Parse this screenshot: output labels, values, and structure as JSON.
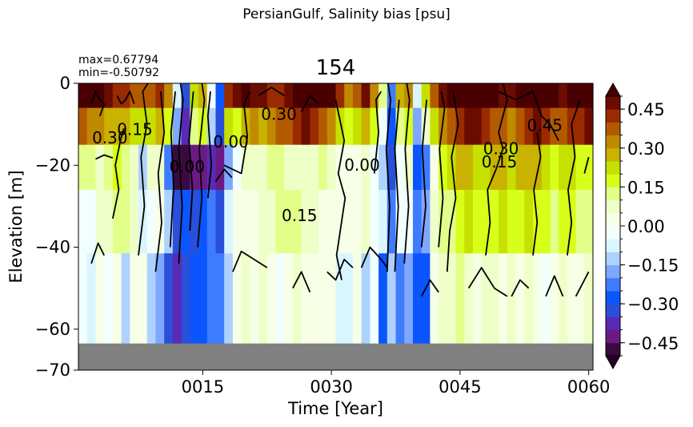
{
  "suptitle": "PersianGulf, Salinity bias [psu]",
  "panel": {
    "title": "154",
    "max_label": "max=0.67794",
    "min_label": "min=-0.50792"
  },
  "chart_data": {
    "type": "heatmap",
    "title": "154",
    "xlabel": "Time [Year]",
    "ylabel": "Elevation [m]",
    "xlim": [
      1,
      60
    ],
    "ylim": [
      -70,
      0
    ],
    "xticks": [
      {
        "v": 15,
        "label": "0015"
      },
      {
        "v": 30,
        "label": "0030"
      },
      {
        "v": 45,
        "label": "0045"
      },
      {
        "v": 60,
        "label": "0060"
      }
    ],
    "yticks": [
      {
        "v": 0,
        "label": "0"
      },
      {
        "v": -20,
        "label": "−20"
      },
      {
        "v": -40,
        "label": "−40"
      },
      {
        "v": -60,
        "label": "−60"
      },
      {
        "v": -70,
        "label": "−70"
      }
    ],
    "levels": [
      -0.5,
      -0.45,
      -0.4,
      -0.35,
      -0.3,
      -0.25,
      -0.2,
      -0.15,
      -0.1,
      -0.05,
      0.0,
      0.05,
      0.1,
      0.15,
      0.2,
      0.25,
      0.3,
      0.35,
      0.4,
      0.45,
      0.5
    ],
    "colors": [
      "#3a0a3e",
      "#6b1a85",
      "#5a2ab5",
      "#2a4fd8",
      "#0b55ff",
      "#3f7bff",
      "#7ea8ff",
      "#add2ff",
      "#d9f5ff",
      "#f1ffff",
      "#f7ffe6",
      "#eeffc8",
      "#e2ff8a",
      "#d7ff19",
      "#c6e000",
      "#c9b200",
      "#c08a00",
      "#b35a00",
      "#9a2b00",
      "#6b0c00"
    ],
    "under_color": "#25002a",
    "over_color": "#4a0000",
    "colorbar_ticks": [
      {
        "v": -0.45,
        "label": "−0.45"
      },
      {
        "v": -0.3,
        "label": "−0.30"
      },
      {
        "v": -0.15,
        "label": "−0.15"
      },
      {
        "v": 0.0,
        "label": "0.00"
      },
      {
        "v": 0.15,
        "label": "0.15"
      },
      {
        "v": 0.3,
        "label": "0.30"
      },
      {
        "v": 0.45,
        "label": "0.45"
      }
    ],
    "mask_color": "#808080",
    "layers_depth_m": [
      [
        0,
        -6
      ],
      [
        -6,
        -15
      ],
      [
        -15,
        -26
      ],
      [
        -26,
        -41.5
      ],
      [
        -41.5,
        -63.5
      ]
    ],
    "mask_layer_m": [
      -63.5,
      -70
    ],
    "cells": [
      [
        0.55,
        0.52,
        0.5,
        0.46,
        0.43,
        0.4,
        0.38,
        0.35,
        0.38,
        0.4,
        0.3,
        -0.1,
        -0.35,
        0.2,
        0.25,
        -0.05,
        -0.3,
        0.4,
        0.45,
        0.5,
        0.48,
        0.45,
        0.42,
        0.4,
        0.45,
        0.5,
        0.55,
        0.6,
        0.55,
        0.5,
        0.4,
        0.3,
        0.35,
        0.45,
        0.3,
        0.1,
        -0.25,
        0.25,
        0.3,
        -0.1,
        0.2,
        0.35,
        0.45,
        0.5,
        0.6,
        0.65,
        0.6,
        0.55,
        0.5,
        0.48,
        0.45,
        0.5,
        0.55,
        0.6,
        0.55,
        0.5,
        0.45,
        0.5,
        0.55,
        0.6
      ],
      [
        0.38,
        0.33,
        0.3,
        0.28,
        0.27,
        0.25,
        0.22,
        0.2,
        0.22,
        0.25,
        0.15,
        -0.2,
        -0.4,
        0.1,
        0.15,
        -0.15,
        -0.35,
        0.22,
        0.18,
        0.25,
        0.3,
        0.28,
        0.32,
        0.35,
        0.38,
        0.42,
        0.45,
        0.4,
        0.35,
        0.3,
        0.2,
        0.15,
        0.2,
        0.25,
        0.15,
        -0.05,
        -0.3,
        0.1,
        0.15,
        -0.2,
        0.05,
        0.2,
        0.3,
        0.35,
        0.42,
        0.48,
        0.45,
        0.4,
        0.38,
        0.35,
        0.32,
        0.38,
        0.42,
        0.45,
        0.4,
        0.38,
        0.35,
        0.4,
        0.42,
        0.45
      ],
      [
        0.12,
        0.1,
        0.08,
        0.12,
        0.15,
        0.1,
        0.05,
        -0.15,
        0.08,
        0.05,
        -0.25,
        -0.48,
        -0.5,
        -0.45,
        -0.42,
        -0.4,
        -0.45,
        -0.2,
        -0.05,
        0.05,
        0.08,
        0.06,
        0.1,
        0.12,
        0.08,
        0.06,
        0.05,
        0.08,
        0.1,
        0.05,
        0.02,
        0.0,
        0.03,
        0.05,
        -0.05,
        -0.15,
        -0.35,
        -0.05,
        0.05,
        -0.3,
        -0.25,
        0.02,
        0.15,
        0.2,
        0.25,
        0.25,
        0.22,
        0.2,
        0.25,
        0.28,
        0.22,
        0.25,
        0.28,
        0.25,
        0.2,
        0.18,
        0.22,
        0.2,
        0.18,
        0.15
      ],
      [
        -0.05,
        -0.02,
        0.05,
        0.08,
        0.1,
        0.12,
        0.05,
        -0.1,
        -0.05,
        0.02,
        -0.15,
        -0.35,
        -0.3,
        -0.35,
        -0.3,
        -0.25,
        -0.35,
        -0.1,
        0.0,
        0.02,
        0.03,
        0.05,
        0.08,
        0.1,
        0.12,
        0.1,
        0.08,
        0.05,
        0.03,
        0.02,
        0.0,
        0.02,
        0.04,
        0.05,
        -0.02,
        -0.08,
        -0.25,
        -0.05,
        -0.02,
        -0.22,
        -0.18,
        0.05,
        0.1,
        0.12,
        0.18,
        0.2,
        0.18,
        0.15,
        0.18,
        0.2,
        0.18,
        0.17,
        0.2,
        0.18,
        0.15,
        0.13,
        0.15,
        0.15,
        0.12,
        0.12
      ],
      [
        -0.05,
        -0.08,
        0.02,
        -0.05,
        0.03,
        -0.12,
        0.02,
        0.03,
        -0.15,
        -0.2,
        -0.35,
        -0.4,
        -0.35,
        -0.28,
        -0.3,
        -0.25,
        -0.25,
        -0.15,
        0.02,
        0.05,
        0.03,
        0.05,
        0.03,
        -0.05,
        0.02,
        0.05,
        0.03,
        0.02,
        0.04,
        0.03,
        -0.08,
        -0.1,
        0.02,
        -0.12,
        -0.05,
        -0.3,
        -0.15,
        -0.25,
        -0.18,
        -0.3,
        -0.3,
        0.03,
        0.05,
        0.08,
        0.1,
        0.05,
        0.03,
        0.05,
        0.06,
        0.03,
        0.05,
        0.02,
        0.05,
        0.03,
        -0.05,
        0.03,
        0.05,
        0.03,
        0.02,
        0.05
      ]
    ],
    "contour_labels": [
      {
        "text": "0.30",
        "x": 2.1,
        "y": -13.3
      },
      {
        "text": "0.15",
        "x": 5.0,
        "y": -11.2
      },
      {
        "text": "0.00",
        "x": 16.2,
        "y": -14.3
      },
      {
        "text": "0.30",
        "x": 21.8,
        "y": -7.5
      },
      {
        "text": "0.15",
        "x": 24.2,
        "y": -32.3
      },
      {
        "text": "0.00",
        "x": 31.5,
        "y": -19.9
      },
      {
        "text": "0.30",
        "x": 47.7,
        "y": -15.9
      },
      {
        "text": "0.15",
        "x": 47.5,
        "y": -19.2
      },
      {
        "text": "0.45",
        "x": 52.8,
        "y": -10.3
      },
      {
        "text": "0.00",
        "x": 11.1,
        "y": -20.3
      }
    ],
    "contour_lines": [
      [
        [
          2,
          -5
        ],
        [
          2.5,
          -2
        ],
        [
          3,
          -4
        ],
        [
          3.5,
          -5
        ],
        [
          3,
          -8
        ]
      ],
      [
        [
          5,
          -3
        ],
        [
          5.5,
          -5
        ],
        [
          6,
          -4
        ],
        [
          6.5,
          -2
        ],
        [
          7,
          -5
        ]
      ],
      [
        [
          2.5,
          -18.5
        ],
        [
          3.5,
          -17.5
        ],
        [
          4.5,
          -18.2
        ]
      ],
      [
        [
          4.5,
          -33
        ],
        [
          5.2,
          -26
        ],
        [
          4.8,
          -20
        ],
        [
          5.4,
          -14
        ],
        [
          5.8,
          -11
        ]
      ],
      [
        [
          2,
          -44
        ],
        [
          2.8,
          -39
        ],
        [
          3.5,
          -42
        ]
      ],
      [
        [
          7.5,
          -42
        ],
        [
          8.2,
          -30
        ],
        [
          7.8,
          -18
        ],
        [
          8.5,
          -10
        ],
        [
          8,
          -2
        ],
        [
          8.6,
          0
        ]
      ],
      [
        [
          9.5,
          -46
        ],
        [
          10.2,
          -34
        ],
        [
          9.8,
          -22
        ],
        [
          10.5,
          -12
        ],
        [
          10.1,
          -2
        ]
      ],
      [
        [
          11.2,
          -40
        ],
        [
          11.6,
          -25
        ],
        [
          11.3,
          -12
        ],
        [
          11.8,
          -2
        ]
      ],
      [
        [
          12.2,
          -44
        ],
        [
          12.6,
          -30
        ],
        [
          12.2,
          -16
        ],
        [
          12.7,
          -4
        ],
        [
          12.4,
          0
        ]
      ],
      [
        [
          13.5,
          -36
        ],
        [
          13.8,
          -26
        ],
        [
          13.4,
          -14
        ],
        [
          13.9,
          -2
        ]
      ],
      [
        [
          14.4,
          -40
        ],
        [
          14.9,
          -28
        ],
        [
          14.6,
          -16
        ],
        [
          15.2,
          -4
        ],
        [
          14.9,
          0
        ]
      ],
      [
        [
          15.6,
          -28
        ],
        [
          16.0,
          -20
        ],
        [
          15.6,
          -8
        ],
        [
          15.9,
          -2
        ]
      ],
      [
        [
          16.5,
          -24
        ],
        [
          17.5,
          -21
        ],
        [
          18.4,
          -23
        ]
      ],
      [
        [
          17.5,
          -20
        ],
        [
          19.5,
          -22
        ],
        [
          20.2,
          -13
        ],
        [
          19.8,
          -5
        ],
        [
          20.5,
          -2
        ]
      ],
      [
        [
          18.5,
          -46
        ],
        [
          19.5,
          -41
        ],
        [
          21,
          -43
        ],
        [
          22.5,
          -45
        ]
      ],
      [
        [
          21.5,
          -3
        ],
        [
          23,
          -1
        ],
        [
          24.5,
          -3
        ]
      ],
      [
        [
          25.5,
          -50
        ],
        [
          26.5,
          -46
        ],
        [
          27.5,
          -51
        ]
      ],
      [
        [
          26.5,
          -7
        ],
        [
          27.5,
          -3
        ],
        [
          28.5,
          -5
        ]
      ],
      [
        [
          29.5,
          -46
        ],
        [
          30.5,
          -48
        ],
        [
          31.5,
          -43
        ],
        [
          32.5,
          -45
        ]
      ],
      [
        [
          30.5,
          -4
        ],
        [
          31.5,
          -14
        ],
        [
          30.8,
          -22
        ],
        [
          31.6,
          -28
        ],
        [
          30.6,
          -42
        ],
        [
          31.2,
          -48
        ]
      ],
      [
        [
          33.5,
          -45
        ],
        [
          34.5,
          -40
        ],
        [
          35.8,
          -43
        ],
        [
          36.5,
          -45
        ]
      ],
      [
        [
          35,
          -22
        ],
        [
          35.5,
          -12
        ],
        [
          35.2,
          -4
        ],
        [
          35.8,
          -2
        ]
      ],
      [
        [
          36.5,
          -46
        ],
        [
          36.8,
          -30
        ],
        [
          36.4,
          -16
        ],
        [
          36.9,
          -4
        ],
        [
          36.6,
          0
        ]
      ],
      [
        [
          37.4,
          -46
        ],
        [
          37.8,
          -30
        ],
        [
          37.4,
          -16
        ],
        [
          37.9,
          -4
        ]
      ],
      [
        [
          38.5,
          -44
        ],
        [
          39,
          -30
        ],
        [
          38.6,
          -16
        ],
        [
          39.1,
          -4
        ],
        [
          38.8,
          0
        ]
      ],
      [
        [
          40.5,
          -40
        ],
        [
          41,
          -30
        ],
        [
          40.6,
          -16
        ],
        [
          41.1,
          -4
        ]
      ],
      [
        [
          40.5,
          -52
        ],
        [
          41.5,
          -48
        ],
        [
          42.5,
          -51
        ]
      ],
      [
        [
          42.5,
          -40
        ],
        [
          43,
          -28
        ],
        [
          42.6,
          -16
        ],
        [
          43.2,
          -6
        ],
        [
          42.8,
          -2
        ]
      ],
      [
        [
          43.5,
          -46
        ],
        [
          43.8,
          -36
        ],
        [
          44.5,
          -28
        ],
        [
          44,
          -18
        ],
        [
          44.8,
          -10
        ],
        [
          44.2,
          -2
        ]
      ],
      [
        [
          46,
          -50
        ],
        [
          47.5,
          -45
        ],
        [
          49,
          -50
        ],
        [
          50.5,
          -52
        ]
      ],
      [
        [
          48,
          -42
        ],
        [
          48.5,
          -34
        ],
        [
          48.2,
          -26
        ],
        [
          49.2,
          -21
        ],
        [
          50,
          -16
        ],
        [
          49.5,
          -12
        ],
        [
          50.5,
          -4
        ],
        [
          50,
          0
        ]
      ],
      [
        [
          49.5,
          -2
        ],
        [
          51.5,
          -4
        ],
        [
          53.5,
          -2
        ],
        [
          54.5,
          -8
        ],
        [
          55.5,
          -10
        ],
        [
          56.5,
          -14
        ]
      ],
      [
        [
          51,
          -52
        ],
        [
          52,
          -48
        ],
        [
          53,
          -50
        ]
      ],
      [
        [
          53.5,
          -42
        ],
        [
          54,
          -34
        ],
        [
          53.6,
          -26
        ],
        [
          54.4,
          -18
        ],
        [
          54,
          -12
        ]
      ],
      [
        [
          55,
          -52
        ],
        [
          56,
          -47
        ],
        [
          57,
          -52
        ]
      ],
      [
        [
          57.5,
          -42
        ],
        [
          58,
          -34
        ],
        [
          57.6,
          -26
        ],
        [
          58.4,
          -18
        ],
        [
          58,
          -10
        ],
        [
          59,
          -4
        ]
      ],
      [
        [
          58.5,
          -52
        ],
        [
          59.5,
          -48
        ],
        [
          60,
          -46
        ]
      ],
      [
        [
          59.5,
          -22
        ],
        [
          60,
          -18
        ]
      ]
    ]
  }
}
